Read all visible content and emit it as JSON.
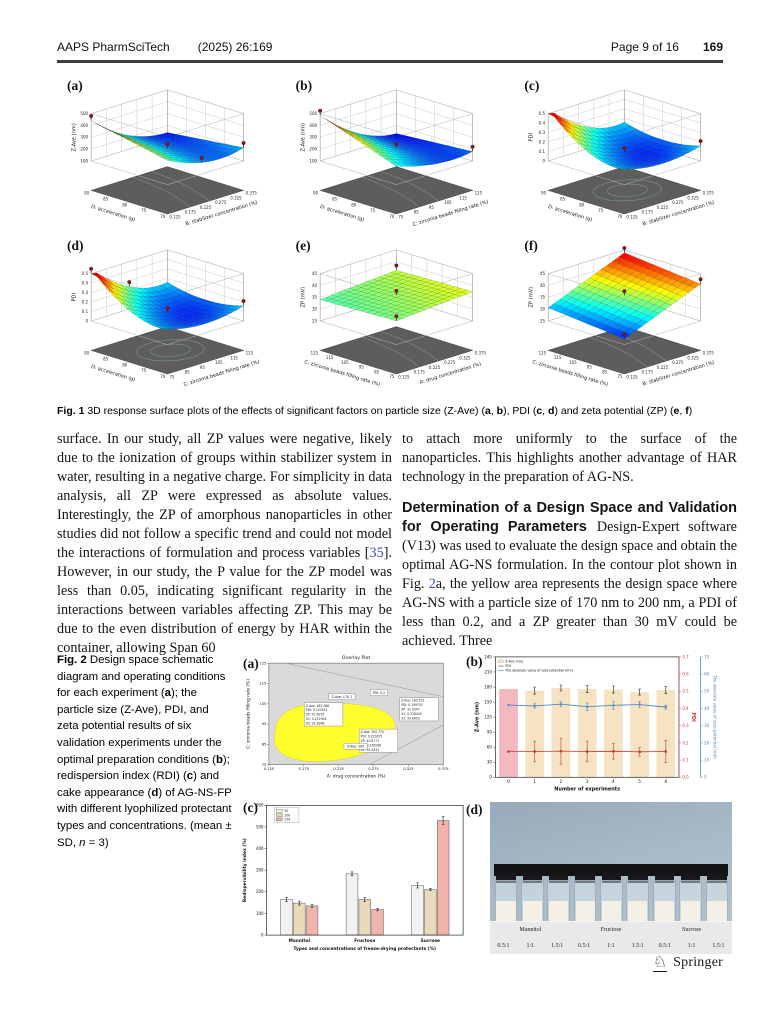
{
  "header": {
    "journal": "AAPS PharmSciTech",
    "citation": "(2025) 26:169",
    "page_info": "Page 9 of 16",
    "article_no": "169"
  },
  "fig1": {
    "caption": [
      {
        "t": "Fig. 1",
        "s": "b"
      },
      {
        "t": "  3D response surface plots of the effects of significant factors on particle size (Z-Ave) ("
      },
      {
        "t": "a",
        "s": "b"
      },
      {
        "t": ", "
      },
      {
        "t": "b",
        "s": "b"
      },
      {
        "t": "), PDI ("
      },
      {
        "t": "c",
        "s": "b"
      },
      {
        "t": ", "
      },
      {
        "t": "d",
        "s": "b"
      },
      {
        "t": ") and zeta potential (ZP) ("
      },
      {
        "t": "e",
        "s": "b"
      },
      {
        "t": ", "
      },
      {
        "t": "f",
        "s": "b"
      },
      {
        "t": ")"
      }
    ],
    "plots": [
      {
        "label": "(a)",
        "shape": "a",
        "zlabel": "Z-Ave (nm)",
        "zticks": [
          "500",
          "400",
          "300",
          "200",
          "100"
        ],
        "left": {
          "label": "D: acceleration (g)",
          "ticks": [
            "90",
            "85",
            "80",
            "75",
            "70"
          ]
        },
        "right": {
          "label": "B: stabilizer concentration (%)",
          "ticks": [
            "0.125",
            "0.175",
            "0.225",
            "0.275",
            "0.325",
            "0.375"
          ]
        }
      },
      {
        "label": "(b)",
        "shape": "b",
        "zlabel": "Z-Ave (nm)",
        "zticks": [
          "500",
          "400",
          "300",
          "200",
          "100"
        ],
        "left": {
          "label": "D: acceleration (g)",
          "ticks": [
            "90",
            "85",
            "80",
            "75",
            "70"
          ]
        },
        "right": {
          "label": "C: zirconia beads filling rate (%)",
          "ticks": [
            "75",
            "85",
            "95",
            "105",
            "115",
            "125"
          ]
        }
      },
      {
        "label": "(c)",
        "shape": "c",
        "zlabel": "PDI",
        "zticks": [
          "0.5",
          "0.4",
          "0.3",
          "0.2",
          "0.1",
          "0"
        ],
        "left": {
          "label": "D: acceleration (g)",
          "ticks": [
            "90",
            "85",
            "80",
            "75",
            "70"
          ]
        },
        "right": {
          "label": "B: stabilizer concentration (%)",
          "ticks": [
            "0.125",
            "0.175",
            "0.225",
            "0.275",
            "0.325",
            "0.375"
          ]
        }
      },
      {
        "label": "(d)",
        "shape": "c",
        "zlabel": "PDI",
        "zticks": [
          "0.5",
          "0.4",
          "0.3",
          "0.2",
          "0.1",
          "0"
        ],
        "left": {
          "label": "D: acceleration (g)",
          "ticks": [
            "90",
            "85",
            "80",
            "75",
            "70"
          ]
        },
        "right": {
          "label": "C: zirconia beads filling rate (%)",
          "ticks": [
            "75",
            "85",
            "95",
            "105",
            "115",
            "125"
          ]
        }
      },
      {
        "label": "(e)",
        "shape": "e",
        "zlabel": "ZP (mV)",
        "zticks": [
          "45",
          "40",
          "35",
          "30",
          "25"
        ],
        "left": {
          "label": "C: zirconia beads filling rate (%)",
          "ticks": [
            "125",
            "115",
            "105",
            "95",
            "85",
            "75"
          ]
        },
        "right": {
          "label": "A: drug concentration (%)",
          "ticks": [
            "0.125",
            "0.175",
            "0.225",
            "0.275",
            "0.325",
            "0.375"
          ]
        }
      },
      {
        "label": "(f)",
        "shape": "f",
        "zlabel": "ZP (mV)",
        "zticks": [
          "45",
          "40",
          "35",
          "30",
          "25"
        ],
        "left": {
          "label": "C: zirconia beads filling rate (%)",
          "ticks": [
            "125",
            "115",
            "105",
            "95",
            "85",
            "75"
          ]
        },
        "right": {
          "label": "B: stabilizer concentration (%)",
          "ticks": [
            "0.125",
            "0.175",
            "0.225",
            "0.275",
            "0.325",
            "0.375"
          ]
        }
      }
    ]
  },
  "body": {
    "left_col": [
      {
        "t": "surface. In our study, all ZP values were negative, likely due to the ionization of groups within stabilizer system in water, resulting in a negative charge. For simplicity in data analysis, all ZP were expressed as absolute values. Interestingly, the ZP of amorphous nanoparticles in other studies did not follow a specific trend and could not model the interactions of formulation and process variables ["
      },
      {
        "t": "35",
        "s": "link"
      },
      {
        "t": "]. However, in our study, the P value for the ZP model was less than 0.05, indicating significant regularity in the interactions between variables affecting ZP. This may be due to the even distribution of energy by HAR within the container, allowing Span 60"
      }
    ],
    "right_p1": "to attach more uniformly to the surface of the nanoparticles. This highlights another advantage of HAR technology in the preparation of AG-NS.",
    "heading": "Determination of a Design Space and Validation for Operating Parameters",
    "right_p2": [
      {
        "t": "Design-Expert software (V13) was used to evaluate the design space and obtain the optimal AG-NS formulation. In the contour plot shown in Fig. "
      },
      {
        "t": "2",
        "s": "link"
      },
      {
        "t": "a, the yellow area represents the design space where AG-NS with a particle size of 170 nm to 200 nm, a PDI of less than 0.2, and a ZP greater than 30 mV could be achieved. Three"
      }
    ]
  },
  "fig2": {
    "caption": [
      {
        "t": "Fig. 2",
        "s": "b"
      },
      {
        "t": "  Design space schematic diagram and operating conditions for each experiment ("
      },
      {
        "t": "a",
        "s": "b"
      },
      {
        "t": "); the particle size (Z-Ave), PDI, and zeta potential results of six validation experiments under the optimal preparation conditions ("
      },
      {
        "t": "b",
        "s": "b"
      },
      {
        "t": "); redispersion index (RDI) ("
      },
      {
        "t": "c",
        "s": "b"
      },
      {
        "t": ") and cake appearance ("
      },
      {
        "t": "d",
        "s": "b"
      },
      {
        "t": ") of AG-NS-FP with different lyophilized protectant types and concentrations. (mean ± SD, "
      },
      {
        "t": "n",
        "s": "i"
      },
      {
        "t": " = 3)"
      }
    ],
    "panel_labels": [
      "(a)",
      "(b)",
      "(c)",
      "(d)"
    ]
  },
  "chart_data": [
    {
      "id": "fig2a",
      "type": "contour-overlay",
      "title": "Overlay Plot",
      "xlabel": "A: drug concentration (%)",
      "ylabel": "C: zirconia beads filling rate (%)",
      "xticks": [
        "0.125",
        "0.175",
        "0.225",
        "0.275",
        "0.325",
        "0.375"
      ],
      "yticks": [
        "75",
        "85",
        "95",
        "105",
        "115",
        "125"
      ],
      "design_space_color": "#ffff2e",
      "region_labels": [
        "Z-Ave: 170.1",
        "PDI: 0.2",
        "Z-Ave: 200"
      ],
      "flags": [
        [
          "Z-Ave: 182.386",
          "PDI: 0.143425",
          "ZP: 41.6353",
          "X1: 0.212904",
          "X2: 91.8346"
        ],
        [
          "Z-Ave: 183.591",
          "PDI: 0.199703",
          "ZP: 41.0347",
          "X1: 0.328449",
          "X2: 93.6053"
        ],
        [
          "Z-Ave: 200.774",
          "PDI: 0.221625",
          "ZP: 40.8777",
          "X1: 0.335098",
          "X2: 91.4341"
        ]
      ]
    },
    {
      "id": "fig2b",
      "type": "bar+line",
      "xlabel": "Number of experiments",
      "categories": [
        "0",
        "1",
        "2",
        "3",
        "4",
        "5",
        "6"
      ],
      "left_axis": {
        "label": "Z-Ave (nm)",
        "min": 0,
        "max": 240,
        "step": 30
      },
      "pdi_axis": {
        "label": "PDI",
        "min": 0,
        "max": 0.7,
        "step": 0.1,
        "color": "#c23b3b"
      },
      "zeta_axis": {
        "label": "The absolute value of zeta potential (mV)",
        "min": 0,
        "max": 70,
        "step": 10,
        "color": "#4f86c6"
      },
      "legend": [
        "Z-Ave (nm)",
        "PDI",
        "The absolute value of zeta potential (mV)"
      ],
      "zave_bars": {
        "values": [
          176,
          173,
          178,
          176,
          175,
          170,
          174
        ],
        "errors": [
          0,
          7,
          6,
          7,
          7,
          6,
          7
        ],
        "bar_colors": [
          "#f4b9c0",
          "#f5e3c2",
          "#f5e3c2",
          "#f5e3c2",
          "#f5e3c2",
          "#f5e3c2",
          "#f5e3c2"
        ]
      },
      "pdi_series": {
        "values": [
          0.15,
          0.15,
          0.152,
          0.15,
          0.151,
          0.148,
          0.15
        ],
        "errors": [
          0,
          0.06,
          0.075,
          0.06,
          0.045,
          0.025,
          0.065
        ]
      },
      "zeta_series": {
        "values": [
          42,
          41.5,
          42.5,
          41,
          41.8,
          42.3,
          40.8
        ],
        "errors": [
          0,
          1.2,
          1.5,
          2.2,
          2.2,
          1.8,
          1.2
        ]
      }
    },
    {
      "id": "fig2c",
      "type": "grouped-bar",
      "ylabel": "Redispersibility index (%)",
      "xlabel": "Types and concentrations of freeze-drying protectants (%)",
      "ylim": [
        0,
        600
      ],
      "ystep": 100,
      "categories": [
        "Mannitol",
        "Fructose",
        "Sucrose"
      ],
      "series": [
        {
          "name": "50",
          "color": "#f2f2f2",
          "values": [
            165,
            283,
            230
          ],
          "errors": [
            10,
            9,
            12
          ]
        },
        {
          "name": "100",
          "color": "#e9dabb",
          "values": [
            148,
            165,
            210
          ],
          "errors": [
            9,
            10,
            5
          ]
        },
        {
          "name": "150",
          "color": "#f1b4ac",
          "values": [
            135,
            118,
            530
          ],
          "errors": [
            7,
            6,
            18
          ]
        }
      ]
    },
    {
      "id": "fig2d",
      "type": "photo",
      "groups": [
        "Mannitol",
        "Fructose",
        "Sucrose"
      ],
      "ratios": [
        "0.5:1",
        "1:1",
        "1.5:1"
      ]
    }
  ],
  "footer": {
    "publisher": "Springer",
    "logo_glyph": "♘"
  }
}
